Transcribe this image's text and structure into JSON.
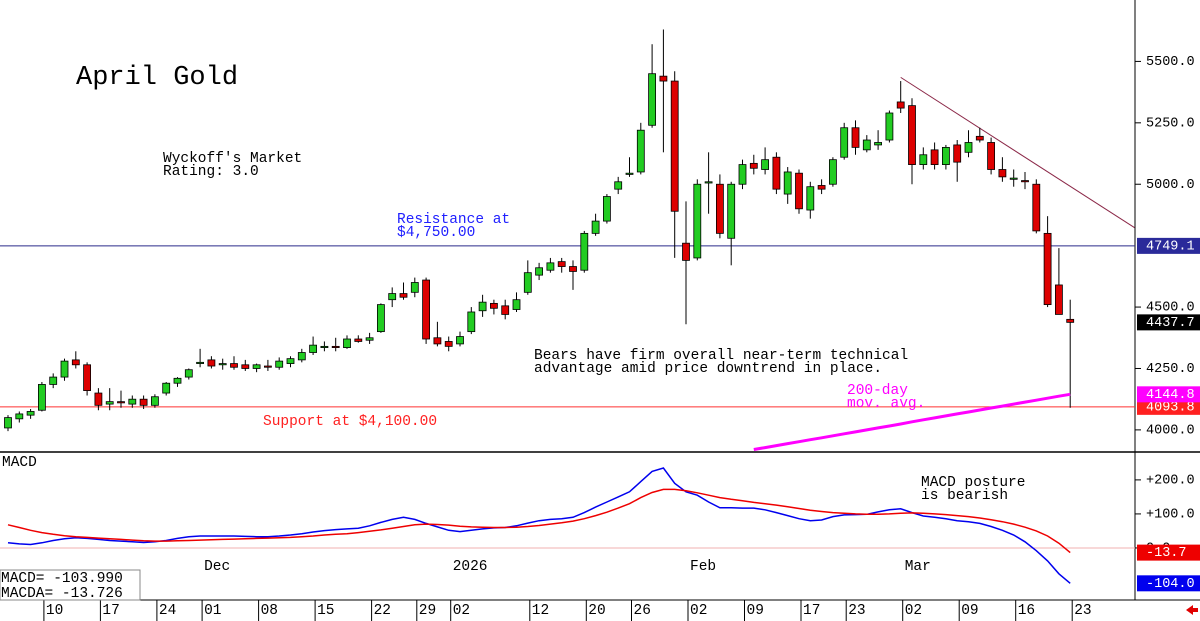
{
  "chart_data": [
    {
      "type": "candlestick",
      "title": "April Gold",
      "categories": [
        null,
        null,
        null,
        "10",
        null,
        null,
        null,
        null,
        "17",
        null,
        null,
        null,
        null,
        "24",
        null,
        null,
        null,
        "01",
        null,
        null,
        null,
        null,
        "08",
        null,
        null,
        null,
        null,
        "15",
        null,
        null,
        null,
        null,
        "22",
        null,
        null,
        null,
        "29",
        null,
        null,
        "02",
        null,
        null,
        null,
        null,
        null,
        null,
        "12",
        null,
        null,
        null,
        null,
        "20",
        null,
        null,
        null,
        "26",
        null,
        null,
        null,
        null,
        "02",
        null,
        null,
        null,
        null,
        "09",
        null,
        null,
        null,
        null,
        "17",
        null,
        null,
        null,
        "23",
        null,
        null,
        null,
        null,
        "02",
        null,
        null,
        null,
        null,
        "09",
        null,
        null,
        null,
        null,
        "16",
        null,
        null,
        null,
        null,
        "23"
      ],
      "period_labels": [
        null,
        null,
        null,
        null,
        null,
        null,
        null,
        null,
        null,
        null,
        null,
        null,
        null,
        null,
        null,
        null,
        null,
        "Dec",
        null,
        null,
        null,
        null,
        null,
        null,
        null,
        null,
        null,
        null,
        null,
        null,
        null,
        null,
        null,
        null,
        null,
        null,
        null,
        null,
        null,
        "2026",
        null,
        null,
        null,
        null,
        null,
        null,
        null,
        null,
        null,
        null,
        null,
        null,
        null,
        null,
        null,
        null,
        null,
        null,
        null,
        null,
        "Feb",
        null,
        null,
        null,
        null,
        null,
        null,
        null,
        null,
        null,
        null,
        null,
        null,
        null,
        null,
        null,
        null,
        null,
        null,
        "Mar",
        null,
        null,
        null,
        null,
        null,
        null,
        null,
        null,
        null,
        null,
        null,
        null,
        null,
        null,
        null
      ],
      "open": [
        4008,
        4045,
        4060,
        4080,
        4185,
        4215,
        4285,
        4265,
        4150,
        4105,
        4115,
        4105,
        4125,
        4100,
        4150,
        4190,
        4215,
        4270,
        4285,
        4265,
        4270,
        4265,
        4250,
        4260,
        4255,
        4270,
        4285,
        4315,
        4335,
        4340,
        4335,
        4370,
        4365,
        4400,
        4530,
        4555,
        4560,
        4610,
        4375,
        4360,
        4350,
        4400,
        4485,
        4515,
        4505,
        4490,
        4560,
        4630,
        4650,
        4685,
        4665,
        4650,
        4800,
        4850,
        4980,
        5040,
        5050,
        5240,
        5440,
        5420,
        4760,
        4700,
        5005,
        5000,
        4780,
        5000,
        5085,
        5060,
        5110,
        4960,
        5045,
        4895,
        4995,
        5000,
        5110,
        5230,
        5140,
        5160,
        5180,
        5335,
        5320,
        5080,
        5140,
        5080,
        5160,
        5130,
        5195,
        5170,
        5060,
        5020,
        5015,
        5000,
        4800,
        4590,
        4450
      ],
      "high": [
        4060,
        4075,
        4085,
        4195,
        4230,
        4290,
        4320,
        4275,
        4170,
        4170,
        4160,
        4140,
        4140,
        4145,
        4195,
        4215,
        4250,
        4330,
        4300,
        4290,
        4300,
        4285,
        4270,
        4285,
        4295,
        4300,
        4330,
        4380,
        4360,
        4375,
        4385,
        4385,
        4395,
        4515,
        4580,
        4600,
        4620,
        4620,
        4440,
        4380,
        4400,
        4500,
        4550,
        4530,
        4530,
        4560,
        4690,
        4680,
        4700,
        4700,
        4690,
        4810,
        4880,
        4960,
        5030,
        5110,
        5250,
        5570,
        5630,
        5460,
        4930,
        5020,
        5130,
        5040,
        5010,
        5100,
        5120,
        5150,
        5130,
        5070,
        5060,
        5010,
        5020,
        5110,
        5250,
        5260,
        5200,
        5220,
        5300,
        5420,
        5350,
        5150,
        5170,
        5160,
        5180,
        5220,
        5230,
        5190,
        5110,
        5060,
        5050,
        5020,
        4870,
        4740,
        4530
      ],
      "low": [
        3995,
        4030,
        4045,
        4075,
        4170,
        4200,
        4250,
        4140,
        4080,
        4080,
        4090,
        4090,
        4085,
        4090,
        4140,
        4175,
        4205,
        4255,
        4250,
        4245,
        4245,
        4240,
        4235,
        4240,
        4245,
        4255,
        4275,
        4305,
        4320,
        4320,
        4330,
        4355,
        4350,
        4395,
        4500,
        4530,
        4540,
        4350,
        4340,
        4320,
        4340,
        4390,
        4460,
        4470,
        4450,
        4480,
        4550,
        4610,
        4640,
        4640,
        4570,
        4640,
        4790,
        4840,
        4960,
        5030,
        5040,
        5230,
        5130,
        4700,
        4430,
        4690,
        4880,
        4780,
        4670,
        4980,
        5040,
        5040,
        4960,
        4920,
        4880,
        4860,
        4960,
        4990,
        5100,
        5120,
        5130,
        5140,
        5170,
        5290,
        5000,
        5060,
        5060,
        5060,
        5010,
        5110,
        5170,
        5040,
        5010,
        4990,
        4980,
        4800,
        4500,
        4470,
        4090
      ],
      "close": [
        4050,
        4065,
        4075,
        4185,
        4215,
        4280,
        4265,
        4160,
        4100,
        4115,
        4110,
        4125,
        4100,
        4135,
        4190,
        4210,
        4245,
        4275,
        4260,
        4270,
        4255,
        4250,
        4265,
        4255,
        4280,
        4290,
        4315,
        4345,
        4340,
        4335,
        4370,
        4360,
        4375,
        4510,
        4555,
        4540,
        4600,
        4370,
        4350,
        4340,
        4380,
        4480,
        4520,
        4495,
        4470,
        4530,
        4640,
        4660,
        4680,
        4665,
        4645,
        4800,
        4850,
        4950,
        5010,
        5045,
        5220,
        5450,
        5420,
        4890,
        4690,
        5000,
        5010,
        4800,
        5000,
        5080,
        5065,
        5100,
        4980,
        5050,
        4900,
        4990,
        4980,
        5100,
        5230,
        5150,
        5180,
        5170,
        5290,
        5310,
        5080,
        5120,
        5080,
        5150,
        5090,
        5170,
        5180,
        5060,
        5030,
        5025,
        5010,
        4810,
        4510,
        4470,
        4437.7
      ],
      "up_color": "#22cc22",
      "down_color": "#dd0000",
      "series": [
        {
          "color": "#ff00ff",
          "values": [
            null,
            null,
            null,
            null,
            null,
            null,
            null,
            null,
            null,
            null,
            null,
            null,
            null,
            null,
            null,
            null,
            null,
            null,
            null,
            null,
            null,
            null,
            null,
            null,
            null,
            null,
            null,
            null,
            null,
            null,
            null,
            null,
            null,
            null,
            null,
            null,
            null,
            null,
            null,
            null,
            null,
            null,
            null,
            null,
            null,
            null,
            null,
            null,
            null,
            null,
            null,
            null,
            null,
            null,
            null,
            null,
            null,
            null,
            null,
            null,
            null,
            null,
            null,
            null,
            null,
            null,
            3920,
            3928,
            3936,
            3944,
            3952,
            3960,
            3968,
            3976,
            3984,
            3992,
            4000,
            4008,
            4016,
            4024,
            4033,
            4041,
            4049,
            4057,
            4065,
            4073,
            4081,
            4089,
            4097,
            4105,
            4113,
            4121,
            4129,
            4137,
            4144.8
          ]
        }
      ],
      "hlines": [
        {
          "value": 4749.1,
          "color": "#2a2a8a"
        },
        {
          "value": 4093.8,
          "color": "#ff3030"
        }
      ],
      "trendline": {
        "x": [
          79,
          99.7
        ],
        "y": [
          5435,
          4823
        ],
        "color": "#8b2848"
      },
      "annotations": [
        {
          "lines": [
            "Wyckoff's Market",
            "Rating: 3.0"
          ],
          "color": "#000000"
        },
        {
          "lines": [
            "Resistance at",
            "$4,750.00"
          ],
          "color": "#2020ff"
        },
        {
          "lines": [
            "Support at $4,100.00"
          ],
          "color": "#ff2020"
        },
        {
          "lines": [
            "Bears have firm overall near-term technical",
            "advantage amid price downtrend in place."
          ],
          "color": "#000000"
        },
        {
          "lines": [
            "200-day",
            "mov. avg."
          ],
          "color": "#ff00ff"
        }
      ],
      "ylim": [
        3910,
        5750
      ],
      "yticks": [
        {
          "value": 4000,
          "label": "4000.0"
        },
        {
          "value": 4250,
          "label": "4250.0"
        },
        {
          "value": 4500,
          "label": "4500.0"
        },
        {
          "value": 5000,
          "label": "5000.0"
        },
        {
          "value": 5250,
          "label": "5250.0"
        },
        {
          "value": 5500,
          "label": "5500.0"
        }
      ]
    },
    {
      "type": "line",
      "title": "MACD",
      "series": [
        {
          "color": "#0000ee",
          "readout": "MACD= -103.990",
          "axis_label": "-104.0",
          "values": [
            15,
            12,
            10,
            15,
            22,
            27,
            30,
            28,
            25,
            22,
            20,
            18,
            16,
            18,
            22,
            28,
            33,
            35,
            35,
            35,
            35,
            34,
            33,
            33,
            35,
            38,
            42,
            47,
            51,
            54,
            56,
            58,
            65,
            75,
            84,
            90,
            84,
            72,
            62,
            52,
            48,
            52,
            56,
            59,
            60,
            65,
            73,
            80,
            84,
            86,
            90,
            104,
            120,
            135,
            150,
            165,
            195,
            225,
            235,
            190,
            165,
            155,
            135,
            118,
            118,
            117,
            117,
            112,
            104,
            95,
            86,
            80,
            82,
            92,
            97,
            98,
            99,
            106,
            112,
            115,
            104,
            94,
            90,
            86,
            80,
            77,
            72,
            63,
            52,
            38,
            18,
            -8,
            -38,
            -76,
            -103.99
          ]
        },
        {
          "color": "#ee0000",
          "readout": "MACDA= -13.726",
          "axis_label": "-13.7",
          "values": [
            68,
            60,
            52,
            45,
            40,
            36,
            33,
            31,
            29,
            27,
            25,
            23,
            21,
            20,
            20,
            21,
            22,
            23,
            24,
            25,
            26,
            27,
            28,
            29,
            30,
            31,
            33,
            35,
            38,
            40,
            42,
            45,
            49,
            53,
            58,
            63,
            68,
            70,
            69,
            67,
            64,
            62,
            61,
            60,
            60,
            61,
            63,
            66,
            70,
            74,
            79,
            86,
            95,
            105,
            117,
            130,
            148,
            163,
            172,
            172,
            168,
            162,
            155,
            148,
            143,
            139,
            134,
            130,
            126,
            121,
            116,
            111,
            107,
            104,
            102,
            100,
            99,
            99,
            100,
            102,
            103,
            102,
            100,
            98,
            95,
            92,
            88,
            83,
            77,
            70,
            61,
            50,
            35,
            14,
            -13.726
          ]
        }
      ],
      "annotations": [
        {
          "lines": [
            "MACD posture",
            "is bearish"
          ],
          "color": "#000000"
        }
      ],
      "ylim": [
        -153,
        282
      ],
      "yticks": [
        {
          "value": 0,
          "label": "0.0"
        },
        {
          "value": 100,
          "label": "+100.0"
        },
        {
          "value": 200,
          "label": "+200.0"
        }
      ]
    }
  ]
}
